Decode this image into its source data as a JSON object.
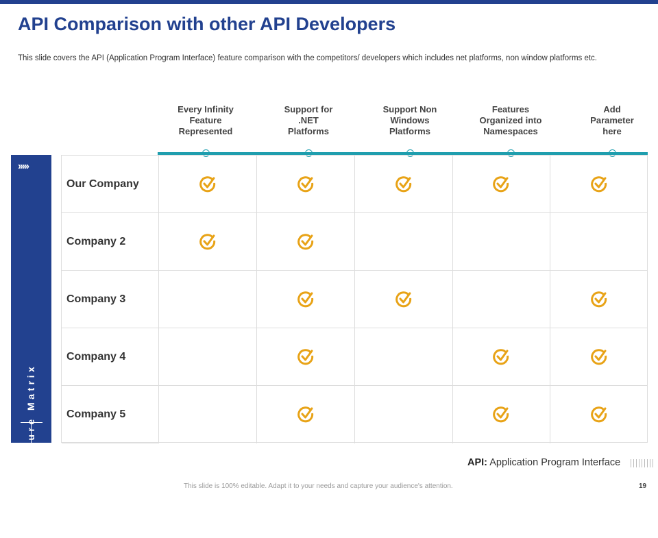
{
  "title": "API Comparison with other API Developers",
  "subtitle": "This slide covers the API (Application Program Interface) feature comparison with the competitors/ developers which includes net platforms, non window platforms etc.",
  "sidebar": {
    "label": "Web API Feature Matrix",
    "chevrons": "›››››"
  },
  "columns": [
    {
      "lines": [
        "Every Infinity",
        "Feature",
        "Represented"
      ]
    },
    {
      "lines": [
        "Support for",
        ".NET",
        "Platforms"
      ]
    },
    {
      "lines": [
        "Support Non",
        "Windows",
        "Platforms"
      ]
    },
    {
      "lines": [
        "Features",
        "Organized into",
        "Namespaces"
      ]
    },
    {
      "lines": [
        "Add",
        "Parameter",
        "here"
      ]
    }
  ],
  "rows": [
    {
      "label": "Our Company",
      "checks": [
        true,
        true,
        true,
        true,
        true
      ]
    },
    {
      "label": "Company 2",
      "checks": [
        true,
        true,
        false,
        false,
        false
      ]
    },
    {
      "label": "Company 3",
      "checks": [
        false,
        true,
        true,
        false,
        true
      ]
    },
    {
      "label": "Company 4",
      "checks": [
        false,
        true,
        false,
        true,
        true
      ]
    },
    {
      "label": "Company 5",
      "checks": [
        false,
        true,
        false,
        true,
        true
      ]
    }
  ],
  "legend": {
    "abbr": "API:",
    "text": "Application Program Interface"
  },
  "footer": "This slide is 100% editable. Adapt it to your needs and capture your audience's attention.",
  "page_number": "19",
  "colors": {
    "brand": "#22418f",
    "accent": "#1f9eae",
    "check": "#e8a317"
  }
}
